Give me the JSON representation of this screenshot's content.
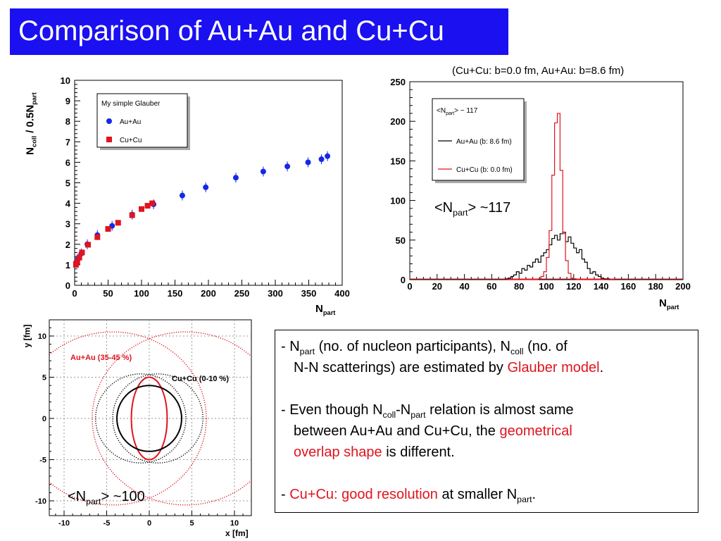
{
  "slide": {
    "title": "Comparison of Au+Au and Cu+Cu"
  },
  "colors": {
    "title_bg": "#1a10f0",
    "blue": "#1428e6",
    "red": "#e0141e",
    "black": "#000000"
  },
  "chart_data": [
    {
      "type": "scatter",
      "ylabel_main": "N",
      "ylabel_sub1": "coll",
      "ylabel_mid": " / 0.5N",
      "ylabel_sub2": "part",
      "xlabel_main": "N",
      "xlabel_sub": "part",
      "xlim": [
        0,
        400
      ],
      "ylim": [
        0,
        10
      ],
      "xticks": [
        "0",
        "50",
        "100",
        "150",
        "200",
        "250",
        "300",
        "350",
        "400"
      ],
      "yticks": [
        "0",
        "1",
        "2",
        "3",
        "4",
        "5",
        "6",
        "7",
        "8",
        "9",
        "10"
      ],
      "legend": {
        "title": "My simple Glauber",
        "placement": "top-left"
      },
      "series": [
        {
          "name": "Au+Au",
          "color": "#1428e6",
          "marker": "circle",
          "x": [
            2,
            5,
            10,
            19,
            34,
            56,
            86,
            118,
            161,
            196,
            241,
            282,
            318,
            349,
            369,
            378
          ],
          "y": [
            1.1,
            1.3,
            1.55,
            2.0,
            2.45,
            2.9,
            3.45,
            3.95,
            4.38,
            4.78,
            5.25,
            5.55,
            5.8,
            6.0,
            6.15,
            6.3
          ]
        },
        {
          "name": "Cu+Cu",
          "color": "#e0141e",
          "marker": "square",
          "x": [
            2,
            4,
            7,
            11,
            20,
            34,
            50,
            65,
            86,
            100,
            109,
            116
          ],
          "y": [
            1.0,
            1.15,
            1.35,
            1.6,
            1.98,
            2.35,
            2.75,
            3.05,
            3.42,
            3.72,
            3.88,
            4.0
          ]
        }
      ]
    },
    {
      "type": "histogram",
      "annotation": "(Cu+Cu: b=0.0 fm, Au+Au: b=8.6 fm)",
      "xlabel_main": "N",
      "xlabel_sub": "part",
      "xlim": [
        0,
        200
      ],
      "ylim": [
        0,
        250
      ],
      "xticks": [
        "0",
        "20",
        "40",
        "60",
        "80",
        "100",
        "120",
        "140",
        "160",
        "180",
        "200"
      ],
      "yticks": [
        "0",
        "50",
        "100",
        "150",
        "200",
        "250"
      ],
      "legend": {
        "title_main": "<N",
        "title_sub": "part",
        "title_rest": "> ~ 117",
        "placement": "top-left"
      },
      "big_label": {
        "main": "<N",
        "sub": "part",
        "rest": "> ~117"
      },
      "bin_start": 70,
      "bin_width": 2,
      "series": [
        {
          "name": "Au+Au (b: 8.6 fm)",
          "color": "#000000",
          "values": [
            1,
            2,
            4,
            6,
            10,
            8,
            14,
            12,
            18,
            16,
            22,
            26,
            22,
            30,
            34,
            38,
            44,
            52,
            56,
            50,
            58,
            60,
            48,
            54,
            46,
            40,
            34,
            38,
            26,
            22,
            14,
            8,
            10,
            6,
            4,
            2,
            1,
            1,
            0,
            0
          ]
        },
        {
          "name": "Cu+Cu (b: 0.0 fm)",
          "color": "#e0141e",
          "values": [
            0,
            0,
            0,
            0,
            0,
            0,
            0,
            0,
            0,
            0,
            0,
            0,
            1,
            4,
            10,
            28,
            62,
            132,
            198,
            210,
            138,
            58,
            24,
            8,
            2,
            1,
            0,
            0,
            0,
            0,
            0,
            0,
            0,
            0,
            0,
            0,
            0,
            0,
            0,
            0
          ]
        }
      ]
    },
    {
      "type": "scatter",
      "xlabel": "x [fm]",
      "ylabel": "y [fm]",
      "xlim": [
        -12,
        12
      ],
      "ylim": [
        -12,
        12
      ],
      "xticks": [
        "-10",
        "-5",
        "0",
        "5",
        "10"
      ],
      "yticks": [
        "10",
        "5",
        "0",
        "-5",
        "-10"
      ],
      "labels": {
        "auau": "Au+Au (35-45 %)",
        "cucu": "Cu+Cu (0-10 %)"
      },
      "big_label": {
        "main": "<N",
        "sub": "part",
        "rest": "> ~100"
      },
      "shapes": [
        {
          "name": "Au nucleus A",
          "color": "#e0141e",
          "style": "dotted",
          "cx": -4.3,
          "cy": 0,
          "rx": 11,
          "ry": 10.5
        },
        {
          "name": "Au nucleus B",
          "color": "#e0141e",
          "style": "dotted",
          "cx": 4.3,
          "cy": 0,
          "rx": 11,
          "ry": 10.5
        },
        {
          "name": "Au overlap",
          "color": "#e0141e",
          "style": "solid",
          "cx": 0,
          "cy": 0,
          "rx": 2.1,
          "ry": 5.0
        },
        {
          "name": "Cu nucleus A",
          "color": "#000000",
          "style": "dotted",
          "cx": -1.0,
          "cy": 0,
          "rx": 5.3,
          "ry": 5.4
        },
        {
          "name": "Cu nucleus B",
          "color": "#000000",
          "style": "dotted",
          "cx": 1.0,
          "cy": 0,
          "rx": 5.3,
          "ry": 5.4
        },
        {
          "name": "Cu overlap",
          "color": "#000000",
          "style": "solid",
          "cx": 0,
          "cy": 0,
          "rx": 3.8,
          "ry": 4.0
        }
      ]
    }
  ],
  "info": {
    "b1_pre": "- N",
    "b1_s1": "part",
    "b1_t1": " (no. of nucleon participants), N",
    "b1_s2": "coll",
    "b1_t2": " (no. of",
    "b1_l2_pre": "N-N scatterings) are estimated by ",
    "b1_l2_red": "Glauber model",
    "b1_l2_post": ".",
    "b2_pre": "- Even though N",
    "b2_s1": "coll",
    "b2_mid": "-N",
    "b2_s2": "part",
    "b2_post": " relation is almost same",
    "b2_l2_pre": "between Au+Au and Cu+Cu, the ",
    "b2_l2_red": "geometrical",
    "b2_l3_red": "overlap shape",
    "b2_l3_post": " is different.",
    "b3_pre": "- ",
    "b3_red": "Cu+Cu: good resolution",
    "b3_mid": " at smaller N",
    "b3_sub": "part",
    "b3_post": "."
  }
}
